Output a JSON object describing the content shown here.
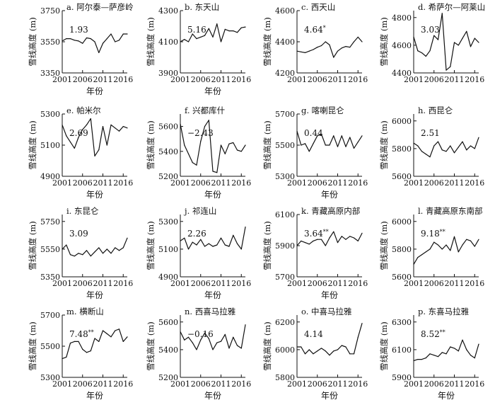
{
  "chart_data": [
    {
      "type": "line",
      "title": "a. 阿尔泰—萨彦岭",
      "annotation": "1.93",
      "annotation_sup": "",
      "xlabel": "年份",
      "ylabel": "雪线高度 (m)",
      "xticks": [
        "2001",
        "2006",
        "2011",
        "2016"
      ],
      "yticks": [
        3350,
        3550,
        3750
      ],
      "ylim": [
        3350,
        3750
      ],
      "xlim": [
        2001,
        2017
      ],
      "x": [
        2001,
        2002,
        2003,
        2004,
        2005,
        2006,
        2007,
        2008,
        2009,
        2010,
        2011,
        2012,
        2013,
        2014,
        2015,
        2016,
        2017
      ],
      "values": [
        3555,
        3570,
        3570,
        3560,
        3555,
        3540,
        3575,
        3570,
        3550,
        3480,
        3540,
        3570,
        3600,
        3550,
        3560,
        3600,
        3600
      ]
    },
    {
      "type": "line",
      "title": "b. 东天山",
      "annotation": "5.16",
      "annotation_sup": "",
      "xlabel": "年份",
      "ylabel": "雪线高度 (m)",
      "xticks": [
        "2001",
        "2006",
        "2011",
        "2016"
      ],
      "yticks": [
        3900,
        4100,
        4300
      ],
      "ylim": [
        3900,
        4300
      ],
      "xlim": [
        2001,
        2017
      ],
      "x": [
        2001,
        2002,
        2003,
        2004,
        2005,
        2006,
        2007,
        2008,
        2009,
        2010,
        2011,
        2012,
        2013,
        2014,
        2015,
        2016,
        2017
      ],
      "values": [
        4100,
        4115,
        4100,
        4150,
        4120,
        4130,
        4140,
        4185,
        4130,
        4215,
        4100,
        4180,
        4170,
        4170,
        4160,
        4190,
        4195
      ]
    },
    {
      "type": "line",
      "title": "c. 西天山",
      "annotation": "4.64",
      "annotation_sup": "*",
      "xlabel": "",
      "ylabel": "雪线高度 (m)",
      "xticks": [
        "2001",
        "2006",
        "2011",
        "2016"
      ],
      "yticks": [
        4200,
        4400,
        4600
      ],
      "ylim": [
        4200,
        4600
      ],
      "xlim": [
        2001,
        2017
      ],
      "x": [
        2001,
        2002,
        2003,
        2004,
        2005,
        2006,
        2007,
        2008,
        2009,
        2010,
        2011,
        2012,
        2013,
        2014,
        2015,
        2016,
        2017
      ],
      "values": [
        4340,
        4335,
        4330,
        4340,
        4350,
        4365,
        4375,
        4400,
        4380,
        4300,
        4340,
        4360,
        4370,
        4365,
        4400,
        4430,
        4400
      ]
    },
    {
      "type": "line",
      "title": "d. 希萨尔—阿莱山",
      "annotation": "3.03",
      "annotation_sup": "",
      "xlabel": "",
      "ylabel": "雪线高度 (m)",
      "xticks": [
        "2001",
        "2006",
        "2011",
        "2016"
      ],
      "yticks": [
        4400,
        4600,
        4800
      ],
      "ylim": [
        4400,
        4850
      ],
      "xlim": [
        2001,
        2017
      ],
      "x": [
        2001,
        2002,
        2003,
        2004,
        2005,
        2006,
        2007,
        2008,
        2009,
        2010,
        2011,
        2012,
        2013,
        2014,
        2015,
        2016,
        2017
      ],
      "values": [
        4660,
        4560,
        4545,
        4520,
        4560,
        4670,
        4640,
        4830,
        4420,
        4445,
        4620,
        4600,
        4650,
        4700,
        4590,
        4650,
        4620
      ]
    },
    {
      "type": "line",
      "title": "e. 帕米尔",
      "annotation": "2.69",
      "annotation_sup": "",
      "xlabel": "年份",
      "ylabel": "雪线高度 (m)",
      "xticks": [
        "2001",
        "2006",
        "2011",
        "2016"
      ],
      "yticks": [
        4900,
        5100,
        5300
      ],
      "ylim": [
        4900,
        5300
      ],
      "xlim": [
        2001,
        2017
      ],
      "x": [
        2001,
        2002,
        2003,
        2004,
        2005,
        2006,
        2007,
        2008,
        2009,
        2010,
        2011,
        2012,
        2013,
        2014,
        2015,
        2016,
        2017
      ],
      "values": [
        5230,
        5160,
        5120,
        5080,
        5150,
        5200,
        5230,
        5270,
        5030,
        5070,
        5220,
        5100,
        5230,
        5210,
        5190,
        5220,
        5210
      ]
    },
    {
      "type": "line",
      "title": "f. 兴都库什",
      "annotation": "−2.43",
      "annotation_sup": "",
      "xlabel": "年份",
      "ylabel": "雪线高度 (m)",
      "xticks": [
        "2001",
        "2006",
        "2011",
        "2016"
      ],
      "yticks": [
        5200,
        5400,
        5600
      ],
      "ylim": [
        5200,
        5700
      ],
      "xlim": [
        2001,
        2017
      ],
      "x": [
        2001,
        2002,
        2003,
        2004,
        2005,
        2006,
        2007,
        2008,
        2009,
        2010,
        2011,
        2012,
        2013,
        2014,
        2015,
        2016,
        2017
      ],
      "values": [
        5620,
        5450,
        5380,
        5310,
        5290,
        5480,
        5600,
        5650,
        5240,
        5230,
        5450,
        5380,
        5460,
        5470,
        5410,
        5400,
        5450
      ]
    },
    {
      "type": "line",
      "title": "g. 喀喇昆仑",
      "annotation": "0.44",
      "annotation_sup": "",
      "xlabel": "年份",
      "ylabel": "雪线高度 (m)",
      "xticks": [
        "2001",
        "2006",
        "2011",
        "2016"
      ],
      "yticks": [
        5300,
        5500,
        5700
      ],
      "ylim": [
        5300,
        5700
      ],
      "xlim": [
        2001,
        2017
      ],
      "x": [
        2001,
        2002,
        2003,
        2004,
        2005,
        2006,
        2007,
        2008,
        2009,
        2010,
        2011,
        2012,
        2013,
        2014,
        2015,
        2016,
        2017
      ],
      "values": [
        5590,
        5500,
        5510,
        5460,
        5510,
        5560,
        5570,
        5500,
        5500,
        5560,
        5490,
        5560,
        5490,
        5550,
        5480,
        5520,
        5560
      ]
    },
    {
      "type": "line",
      "title": "h. 西昆仑",
      "annotation": "2.51",
      "annotation_sup": "",
      "xlabel": "",
      "ylabel": "雪线高度 (m)",
      "xticks": [
        "2001",
        "2006",
        "2011",
        "2016"
      ],
      "yticks": [
        5600,
        5800,
        6000
      ],
      "ylim": [
        5600,
        6050
      ],
      "xlim": [
        2001,
        2017
      ],
      "x": [
        2001,
        2002,
        2003,
        2004,
        2005,
        2006,
        2007,
        2008,
        2009,
        2010,
        2011,
        2012,
        2013,
        2014,
        2015,
        2016,
        2017
      ],
      "values": [
        5840,
        5820,
        5780,
        5760,
        5740,
        5820,
        5850,
        5790,
        5780,
        5820,
        5770,
        5810,
        5850,
        5790,
        5820,
        5800,
        5880
      ]
    },
    {
      "type": "line",
      "title": "i. 东昆仑",
      "annotation": "3.09",
      "annotation_sup": "",
      "xlabel": "年份",
      "ylabel": "雪线高度 (m)",
      "xticks": [
        "2001",
        "2006",
        "2011",
        "2016"
      ],
      "yticks": [
        5350,
        5550,
        5750
      ],
      "ylim": [
        5350,
        5800
      ],
      "xlim": [
        2001,
        2017
      ],
      "x": [
        2001,
        2002,
        2003,
        2004,
        2005,
        2006,
        2007,
        2008,
        2009,
        2010,
        2011,
        2012,
        2013,
        2014,
        2015,
        2016,
        2017
      ],
      "values": [
        5550,
        5580,
        5510,
        5500,
        5520,
        5510,
        5540,
        5500,
        5530,
        5560,
        5520,
        5550,
        5520,
        5560,
        5540,
        5560,
        5630
      ]
    },
    {
      "type": "line",
      "title": "j. 祁连山",
      "annotation": "2.26",
      "annotation_sup": "",
      "xlabel": "年份",
      "ylabel": "雪线高度 (m)",
      "xticks": [
        "2001",
        "2006",
        "2011",
        "2016"
      ],
      "yticks": [
        4900,
        5100,
        5300
      ],
      "ylim": [
        4900,
        5350
      ],
      "xlim": [
        2001,
        2017
      ],
      "x": [
        2001,
        2002,
        2003,
        2004,
        2005,
        2006,
        2007,
        2008,
        2009,
        2010,
        2011,
        2012,
        2013,
        2014,
        2015,
        2016,
        2017
      ],
      "values": [
        5160,
        5180,
        5100,
        5150,
        5130,
        5170,
        5120,
        5140,
        5120,
        5130,
        5180,
        5130,
        5120,
        5200,
        5140,
        5100,
        5260
      ]
    },
    {
      "type": "line",
      "title": "k. 青藏高原内部",
      "annotation": "3.64",
      "annotation_sup": "**",
      "xlabel": "年份",
      "ylabel": "雪线高度 (m)",
      "xticks": [
        "2001",
        "2006",
        "2011",
        "2016"
      ],
      "yticks": [
        5700,
        5900,
        6100
      ],
      "ylim": [
        5700,
        6100
      ],
      "xlim": [
        2001,
        2017
      ],
      "x": [
        2001,
        2002,
        2003,
        2004,
        2005,
        2006,
        2007,
        2008,
        2009,
        2010,
        2011,
        2012,
        2013,
        2014,
        2015,
        2016,
        2017
      ],
      "values": [
        5900,
        5930,
        5920,
        5910,
        5930,
        5940,
        5940,
        5900,
        5950,
        5990,
        5920,
        5960,
        5940,
        5960,
        5950,
        5930,
        5980
      ]
    },
    {
      "type": "line",
      "title": "l. 青藏高原东南部",
      "annotation": "9.18",
      "annotation_sup": "**",
      "xlabel": "",
      "ylabel": "雪线高度 (m)",
      "xticks": [
        "2001",
        "2006",
        "2011",
        "2016"
      ],
      "yticks": [
        5600,
        5800,
        6000
      ],
      "ylim": [
        5600,
        6050
      ],
      "xlim": [
        2001,
        2017
      ],
      "x": [
        2001,
        2002,
        2003,
        2004,
        2005,
        2006,
        2007,
        2008,
        2009,
        2010,
        2011,
        2012,
        2013,
        2014,
        2015,
        2016,
        2017
      ],
      "values": [
        5690,
        5740,
        5760,
        5780,
        5800,
        5850,
        5830,
        5800,
        5830,
        5790,
        5890,
        5780,
        5830,
        5870,
        5860,
        5820,
        5870
      ]
    },
    {
      "type": "line",
      "title": "m. 横断山",
      "annotation": "7.48",
      "annotation_sup": "**",
      "xlabel": "年份",
      "ylabel": "雪线高度 (m)",
      "xticks": [
        "2001",
        "2006",
        "2011",
        "2016"
      ],
      "yticks": [
        5300,
        5500,
        5700
      ],
      "ylim": [
        5300,
        5700
      ],
      "xlim": [
        2001,
        2017
      ],
      "x": [
        2001,
        2002,
        2003,
        2004,
        2005,
        2006,
        2007,
        2008,
        2009,
        2010,
        2011,
        2012,
        2013,
        2014,
        2015,
        2016,
        2017
      ],
      "values": [
        5420,
        5430,
        5520,
        5530,
        5530,
        5480,
        5460,
        5470,
        5550,
        5530,
        5600,
        5580,
        5560,
        5600,
        5610,
        5530,
        5560
      ]
    },
    {
      "type": "line",
      "title": "n. 西喜马拉雅",
      "annotation": "−0.16",
      "annotation_sup": "",
      "xlabel": "年份",
      "ylabel": "雪线高度 (m)",
      "xticks": [
        "2001",
        "2006",
        "2011",
        "2016"
      ],
      "yticks": [
        5200,
        5400,
        5600
      ],
      "ylim": [
        5200,
        5650
      ],
      "xlim": [
        2001,
        2017
      ],
      "x": [
        2001,
        2002,
        2003,
        2004,
        2005,
        2006,
        2007,
        2008,
        2009,
        2010,
        2011,
        2012,
        2013,
        2014,
        2015,
        2016,
        2017
      ],
      "values": [
        5530,
        5470,
        5490,
        5450,
        5400,
        5470,
        5520,
        5480,
        5400,
        5450,
        5460,
        5510,
        5410,
        5490,
        5430,
        5410,
        5580
      ]
    },
    {
      "type": "line",
      "title": "o. 中喜马拉雅",
      "annotation": "4.14",
      "annotation_sup": "",
      "xlabel": "年份",
      "ylabel": "雪线高度 (m)",
      "xticks": [
        "2001",
        "2006",
        "2011",
        "2016"
      ],
      "yticks": [
        5800,
        6000,
        6200
      ],
      "ylim": [
        5800,
        6250
      ],
      "xlim": [
        2001,
        2017
      ],
      "x": [
        2001,
        2002,
        2003,
        2004,
        2005,
        2006,
        2007,
        2008,
        2009,
        2010,
        2011,
        2012,
        2013,
        2014,
        2015,
        2016,
        2017
      ],
      "values": [
        6020,
        6020,
        5970,
        6000,
        5970,
        5990,
        6010,
        5990,
        5960,
        5990,
        6000,
        6030,
        6020,
        5970,
        5970,
        6090,
        6190
      ]
    },
    {
      "type": "line",
      "title": "p. 东喜马拉雅",
      "annotation": "8.52",
      "annotation_sup": "**",
      "xlabel": "年份",
      "ylabel": "雪线高度 (m)",
      "xticks": [
        "2001",
        "2006",
        "2011",
        "2016"
      ],
      "yticks": [
        5900,
        6100,
        6300
      ],
      "ylim": [
        5900,
        6350
      ],
      "xlim": [
        2001,
        2017
      ],
      "x": [
        2001,
        2002,
        2003,
        2004,
        2005,
        2006,
        2007,
        2008,
        2009,
        2010,
        2011,
        2012,
        2013,
        2014,
        2015,
        2016,
        2017
      ],
      "values": [
        6020,
        6030,
        6030,
        6040,
        6070,
        6060,
        6050,
        6080,
        6070,
        6120,
        6110,
        6090,
        6170,
        6100,
        6060,
        6040,
        6140
      ]
    }
  ]
}
